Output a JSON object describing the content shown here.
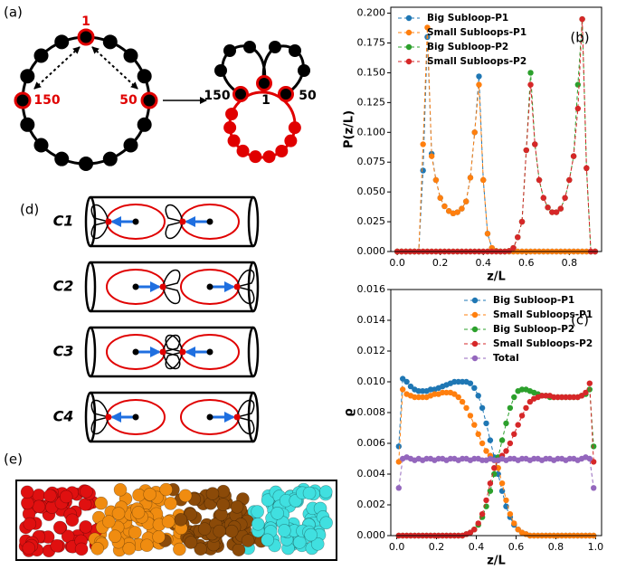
{
  "chart_data": [
    {
      "type": "line",
      "panel_label": "(b)",
      "xlabel": "z/L",
      "ylabel": "P(z/L)",
      "legend": "upper left",
      "xlim": [
        -0.03,
        0.95
      ],
      "ylim": [
        0,
        0.205
      ],
      "xticks": [
        {
          "value": 0,
          "label": "0.0"
        },
        {
          "value": 0.2,
          "label": "0.2"
        },
        {
          "value": 0.4,
          "label": "0.4"
        },
        {
          "value": 0.6,
          "label": "0.6"
        },
        {
          "value": 0.8,
          "label": "0.8"
        }
      ],
      "yticks": [
        {
          "value": 0,
          "label": "0.000"
        },
        {
          "value": 0.025,
          "label": "0.025"
        },
        {
          "value": 0.05,
          "label": "0.050"
        },
        {
          "value": 0.075,
          "label": "0.075"
        },
        {
          "value": 0.1,
          "label": "0.100"
        },
        {
          "value": 0.125,
          "label": "0.125"
        },
        {
          "value": 0.15,
          "label": "0.150"
        },
        {
          "value": 0.175,
          "label": "0.175"
        },
        {
          "value": 0.2,
          "label": "0.200"
        }
      ],
      "x": [
        0,
        0.02,
        0.04,
        0.06,
        0.08,
        0.1,
        0.12,
        0.14,
        0.16,
        0.18,
        0.2,
        0.22,
        0.24,
        0.26,
        0.28,
        0.3,
        0.32,
        0.34,
        0.36,
        0.38,
        0.4,
        0.42,
        0.44,
        0.46,
        0.48,
        0.5,
        0.52,
        0.54,
        0.56,
        0.58,
        0.6,
        0.62,
        0.64,
        0.66,
        0.68,
        0.7,
        0.72,
        0.74,
        0.76,
        0.78,
        0.8,
        0.82,
        0.84,
        0.86,
        0.88,
        0.9,
        0.92
      ],
      "series": [
        {
          "name": "Big Subloop-P1",
          "color": "#1f77b4",
          "values": [
            0,
            0,
            0,
            0,
            0,
            0,
            0.068,
            0.18,
            0.082,
            0.06,
            0.045,
            0.038,
            0.034,
            0.032,
            0.033,
            0.036,
            0.042,
            0.062,
            0.1,
            0.147,
            0.06,
            0.015,
            0.003,
            0.0005,
            0,
            0,
            0,
            0,
            0,
            0,
            0,
            0,
            0,
            0,
            0,
            0,
            0,
            0,
            0,
            0,
            0,
            0,
            0,
            0,
            0,
            0,
            0
          ]
        },
        {
          "name": "Small Subloops-P1",
          "color": "#ff7f0e",
          "values": [
            0,
            0,
            0,
            0,
            0,
            0,
            0.09,
            0.188,
            0.08,
            0.06,
            0.045,
            0.038,
            0.034,
            0.032,
            0.033,
            0.036,
            0.042,
            0.062,
            0.1,
            0.14,
            0.06,
            0.015,
            0.003,
            0.0005,
            0,
            0,
            0,
            0,
            0,
            0,
            0,
            0,
            0,
            0,
            0,
            0,
            0,
            0,
            0,
            0,
            0,
            0,
            0,
            0,
            0,
            0,
            0
          ]
        },
        {
          "name": "Big Subloop-P2",
          "color": "#2ca02c",
          "values": [
            0,
            0,
            0,
            0,
            0,
            0,
            0,
            0,
            0,
            0,
            0,
            0,
            0,
            0,
            0,
            0,
            0,
            0,
            0,
            0,
            0,
            0,
            0,
            0,
            0,
            0,
            0.0005,
            0.003,
            0.012,
            0.025,
            0.085,
            0.15,
            0.09,
            0.06,
            0.045,
            0.037,
            0.033,
            0.033,
            0.036,
            0.045,
            0.06,
            0.08,
            0.14,
            0.195,
            0.07,
            0,
            0
          ]
        },
        {
          "name": "Small Subloops-P2",
          "color": "#d62728",
          "values": [
            0,
            0,
            0,
            0,
            0,
            0,
            0,
            0,
            0,
            0,
            0,
            0,
            0,
            0,
            0,
            0,
            0,
            0,
            0,
            0,
            0,
            0,
            0,
            0,
            0,
            0,
            0.0005,
            0.003,
            0.012,
            0.025,
            0.085,
            0.14,
            0.09,
            0.06,
            0.045,
            0.037,
            0.033,
            0.033,
            0.036,
            0.045,
            0.06,
            0.08,
            0.12,
            0.195,
            0.07,
            0,
            0
          ]
        }
      ]
    },
    {
      "type": "line",
      "panel_label": "(c)",
      "xlabel": "z/L",
      "ylabel": "ϱ",
      "legend": "upper right",
      "xlim": [
        -0.03,
        1.03
      ],
      "ylim": [
        0,
        0.016
      ],
      "xticks": [
        {
          "value": 0,
          "label": "0.0"
        },
        {
          "value": 0.2,
          "label": "0.2"
        },
        {
          "value": 0.4,
          "label": "0.4"
        },
        {
          "value": 0.6,
          "label": "0.6"
        },
        {
          "value": 0.8,
          "label": "0.8"
        },
        {
          "value": 1,
          "label": "1.0"
        }
      ],
      "yticks": [
        {
          "value": 0,
          "label": "0.000"
        },
        {
          "value": 0.002,
          "label": "0.002"
        },
        {
          "value": 0.004,
          "label": "0.004"
        },
        {
          "value": 0.006,
          "label": "0.006"
        },
        {
          "value": 0.008,
          "label": "0.008"
        },
        {
          "value": 0.01,
          "label": "0.010"
        },
        {
          "value": 0.012,
          "label": "0.012"
        },
        {
          "value": 0.014,
          "label": "0.014"
        },
        {
          "value": 0.016,
          "label": "0.016"
        }
      ],
      "x": [
        0.01,
        0.03,
        0.05,
        0.07,
        0.09,
        0.11,
        0.13,
        0.15,
        0.17,
        0.19,
        0.21,
        0.23,
        0.25,
        0.27,
        0.29,
        0.31,
        0.33,
        0.35,
        0.37,
        0.39,
        0.41,
        0.43,
        0.45,
        0.47,
        0.49,
        0.51,
        0.53,
        0.55,
        0.57,
        0.59,
        0.61,
        0.63,
        0.65,
        0.67,
        0.69,
        0.71,
        0.73,
        0.75,
        0.77,
        0.79,
        0.81,
        0.83,
        0.85,
        0.87,
        0.89,
        0.91,
        0.93,
        0.95,
        0.97,
        0.99
      ],
      "series": [
        {
          "name": "Big Subloop-P1",
          "color": "#1f77b4",
          "values": [
            0.0058,
            0.0102,
            0.01,
            0.0097,
            0.0095,
            0.0094,
            0.0094,
            0.0094,
            0.0095,
            0.0095,
            0.0096,
            0.0097,
            0.0098,
            0.0099,
            0.01,
            0.01,
            0.01,
            0.01,
            0.0099,
            0.0096,
            0.0091,
            0.0083,
            0.0073,
            0.0062,
            0.0051,
            0.004,
            0.0029,
            0.0019,
            0.0012,
            0.0007,
            0.0004,
            0.0002,
            0.0001,
            0,
            0,
            0,
            0,
            0,
            0,
            0,
            0,
            0,
            0,
            0,
            0,
            0,
            0,
            0,
            0,
            0
          ]
        },
        {
          "name": "Small Subloops-P1",
          "color": "#ff7f0e",
          "values": [
            0.0048,
            0.0095,
            0.0092,
            0.0091,
            0.009,
            0.009,
            0.009,
            0.009,
            0.0091,
            0.0092,
            0.0092,
            0.0093,
            0.0093,
            0.0093,
            0.0092,
            0.009,
            0.0087,
            0.0083,
            0.0078,
            0.0072,
            0.0066,
            0.006,
            0.0055,
            0.0052,
            0.0049,
            0.0044,
            0.0034,
            0.0023,
            0.0014,
            0.0008,
            0.0004,
            0.0002,
            0.0001,
            0,
            0,
            0,
            0,
            0,
            0,
            0,
            0,
            0,
            0,
            0,
            0,
            0,
            0,
            0,
            0,
            0
          ]
        },
        {
          "name": "Big Subloop-P2",
          "color": "#2ca02c",
          "values": [
            0,
            0,
            0,
            0,
            0,
            0,
            0,
            0,
            0,
            0,
            0,
            0,
            0,
            0,
            0,
            0,
            0,
            0.0001,
            0.0002,
            0.0004,
            0.0007,
            0.0012,
            0.0019,
            0.0029,
            0.004,
            0.0051,
            0.0062,
            0.0073,
            0.0083,
            0.009,
            0.0094,
            0.0095,
            0.0095,
            0.0094,
            0.0093,
            0.0092,
            0.0091,
            0.0091,
            0.009,
            0.009,
            0.009,
            0.009,
            0.009,
            0.009,
            0.009,
            0.009,
            0.0091,
            0.0092,
            0.0095,
            0.0058
          ]
        },
        {
          "name": "Small Subloops-P2",
          "color": "#d62728",
          "values": [
            0,
            0,
            0,
            0,
            0,
            0,
            0,
            0,
            0,
            0,
            0,
            0,
            0,
            0,
            0,
            0,
            0,
            0.0001,
            0.0002,
            0.0004,
            0.0008,
            0.0014,
            0.0023,
            0.0034,
            0.0044,
            0.0049,
            0.0052,
            0.0055,
            0.006,
            0.0066,
            0.0072,
            0.0078,
            0.0083,
            0.0087,
            0.0089,
            0.009,
            0.0091,
            0.0091,
            0.0091,
            0.009,
            0.009,
            0.009,
            0.009,
            0.009,
            0.009,
            0.009,
            0.0091,
            0.0093,
            0.0099,
            0.0048
          ]
        },
        {
          "name": "Total",
          "color": "#9467bd",
          "values": [
            0.0031,
            0.005,
            0.0051,
            0.005,
            0.0049,
            0.005,
            0.0049,
            0.005,
            0.005,
            0.0049,
            0.005,
            0.005,
            0.0049,
            0.005,
            0.005,
            0.0049,
            0.005,
            0.005,
            0.0049,
            0.005,
            0.005,
            0.0049,
            0.0049,
            0.005,
            0.0049,
            0.0049,
            0.005,
            0.0049,
            0.005,
            0.005,
            0.0049,
            0.005,
            0.005,
            0.0049,
            0.005,
            0.005,
            0.0049,
            0.005,
            0.005,
            0.0049,
            0.005,
            0.005,
            0.0049,
            0.005,
            0.005,
            0.0049,
            0.005,
            0.0051,
            0.005,
            0.0031
          ]
        }
      ]
    }
  ],
  "panels": {
    "a": {
      "label": "(a)",
      "ring_labels": [
        "1",
        "150",
        "50"
      ],
      "folded_labels": [
        "150",
        "1",
        "50"
      ]
    },
    "d": {
      "label": "(d)",
      "configs": [
        "C1",
        "C2",
        "C3",
        "C4"
      ]
    },
    "e": {
      "label": "(e)"
    }
  }
}
